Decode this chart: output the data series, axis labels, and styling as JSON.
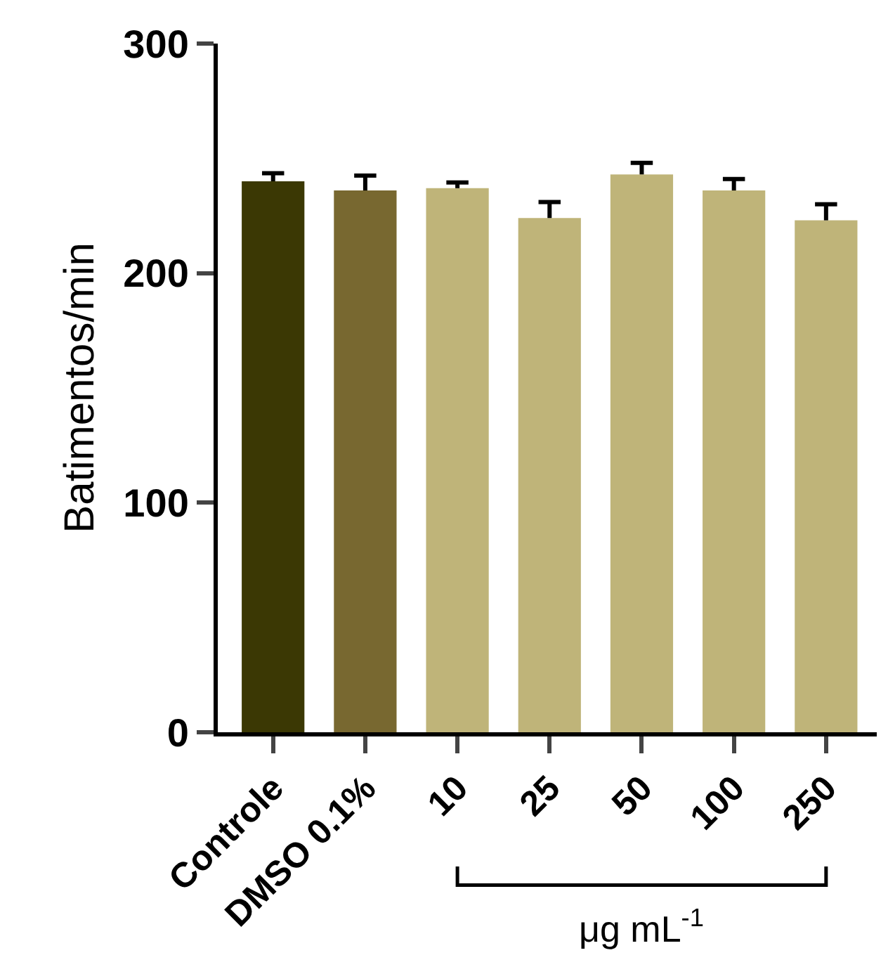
{
  "chart_data": {
    "type": "bar",
    "categories": [
      "Controle",
      "DMSO 0.1%",
      "10",
      "25",
      "50",
      "100",
      "250"
    ],
    "values": [
      240,
      236,
      237,
      224,
      243,
      236,
      223
    ],
    "errors": [
      3.5,
      6.5,
      2.5,
      7,
      5,
      5,
      7
    ],
    "colors": [
      "#3b3804",
      "#786830",
      "#bfb479",
      "#bfb479",
      "#bfb479",
      "#bfb479",
      "#bfb479"
    ],
    "ylabel": "Batimentos/min",
    "xlabel": "μg mL$^{-1}$",
    "ylim": [
      0,
      300
    ],
    "yticks": [
      0,
      100,
      200,
      300
    ],
    "legend": false
  }
}
